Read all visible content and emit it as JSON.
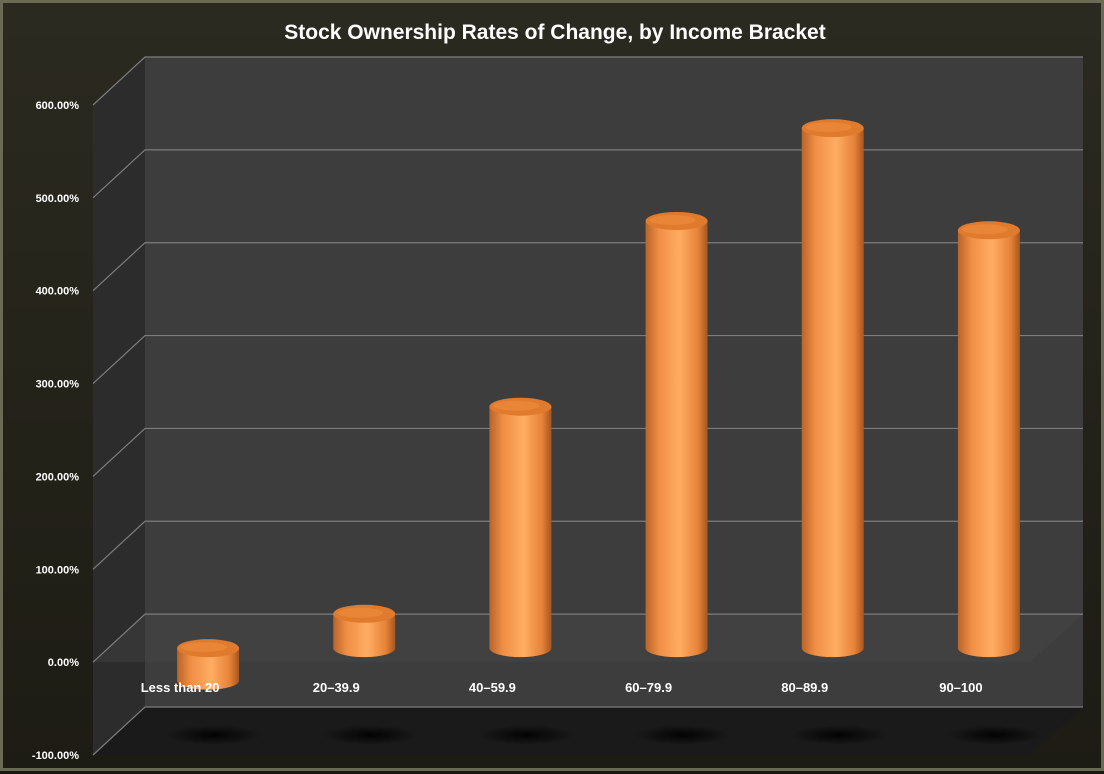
{
  "chart_data": {
    "type": "bar",
    "style": "3d-cylinder",
    "title": "Stock Ownership Rates of Change, by Income Bracket",
    "xlabel": "",
    "ylabel": "",
    "categories": [
      "Less than 20",
      "20–39.9",
      "40–59.9",
      "60–79.9",
      "80–89.9",
      "90–100"
    ],
    "series": [
      {
        "values": [
          -35,
          37,
          260,
          460,
          560,
          450
        ]
      }
    ],
    "ylim": [
      -100,
      600
    ],
    "ytick_step": 100,
    "ytick_format": "percent-2dp",
    "grid": true,
    "legend": "none",
    "colors": {
      "bar": "#f39a4a",
      "bar_top": "#e07a2c",
      "wall": "#3d3d3d",
      "side_wall": "#2c2c2c",
      "floor": "#1a1a1a",
      "gridline": "#7d7d7d",
      "text": "#ffffff"
    }
  }
}
